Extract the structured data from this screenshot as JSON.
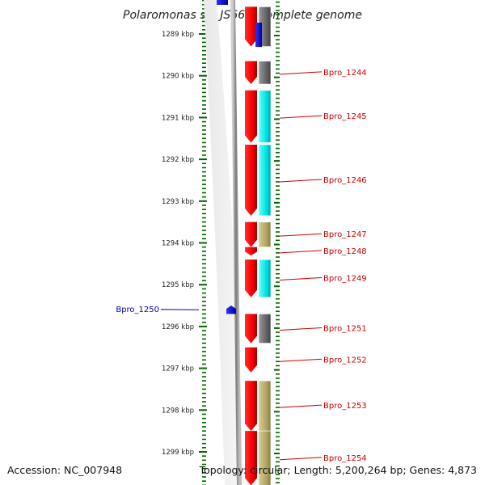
{
  "title": "Polaromonas sp. JS666, complete genome",
  "footer": {
    "accession": "Accession: NC_007948",
    "topology": "Topology: circular; Length: 5,200,264 bp; Genes: 4,873"
  },
  "colors": {
    "forward_strand": "#ff0000",
    "reverse_strand": "#0000cc",
    "tick": "#006600",
    "label_forward": "#cc0000",
    "label_reverse": "#0000aa",
    "backbone": "#808080",
    "cog_cyan": "#00e5e5",
    "cog_gray": "#666666",
    "cog_khaki": "#b3a766"
  },
  "ruler": {
    "unit": "kbp",
    "marks": [
      1289,
      1290,
      1291,
      1292,
      1293,
      1294,
      1295,
      1296,
      1297,
      1298,
      1299
    ]
  },
  "genes": [
    {
      "label": "",
      "strand": "+",
      "cog": "gray",
      "from": 1288.35,
      "to": 1289.3
    },
    {
      "label": "",
      "strand": "-",
      "cog": "",
      "from": 1288.3,
      "to": 1288.35
    },
    {
      "label": "Bpro_1244",
      "strand": "+",
      "cog": "gray",
      "from": 1289.65,
      "to": 1290.2
    },
    {
      "label": "Bpro_1245",
      "strand": "+",
      "cog": "cyan",
      "from": 1290.35,
      "to": 1291.6
    },
    {
      "label": "Bpro_1246",
      "strand": "+",
      "cog": "cyan",
      "from": 1291.65,
      "to": 1293.35
    },
    {
      "label": "Bpro_1247",
      "strand": "+",
      "cog": "khaki",
      "from": 1293.5,
      "to": 1294.1
    },
    {
      "label": "Bpro_1248",
      "strand": "+",
      "cog": "",
      "from": 1294.1,
      "to": 1294.3
    },
    {
      "label": "Bpro_1249",
      "strand": "+",
      "cog": "cyan",
      "from": 1294.4,
      "to": 1295.3
    },
    {
      "label": "Bpro_1250",
      "strand": "-",
      "cog": "",
      "from": 1295.5,
      "to": 1295.7
    },
    {
      "label": "Bpro_1251",
      "strand": "+",
      "cog": "gray",
      "from": 1295.7,
      "to": 1296.4
    },
    {
      "label": "Bpro_1252",
      "strand": "+",
      "cog": "",
      "from": 1296.5,
      "to": 1297.1
    },
    {
      "label": "Bpro_1253",
      "strand": "+",
      "cog": "khaki",
      "from": 1297.3,
      "to": 1298.5
    },
    {
      "label": "Bpro_1254",
      "strand": "+",
      "cog": "khaki",
      "from": 1298.5,
      "to": 1299.8
    }
  ]
}
